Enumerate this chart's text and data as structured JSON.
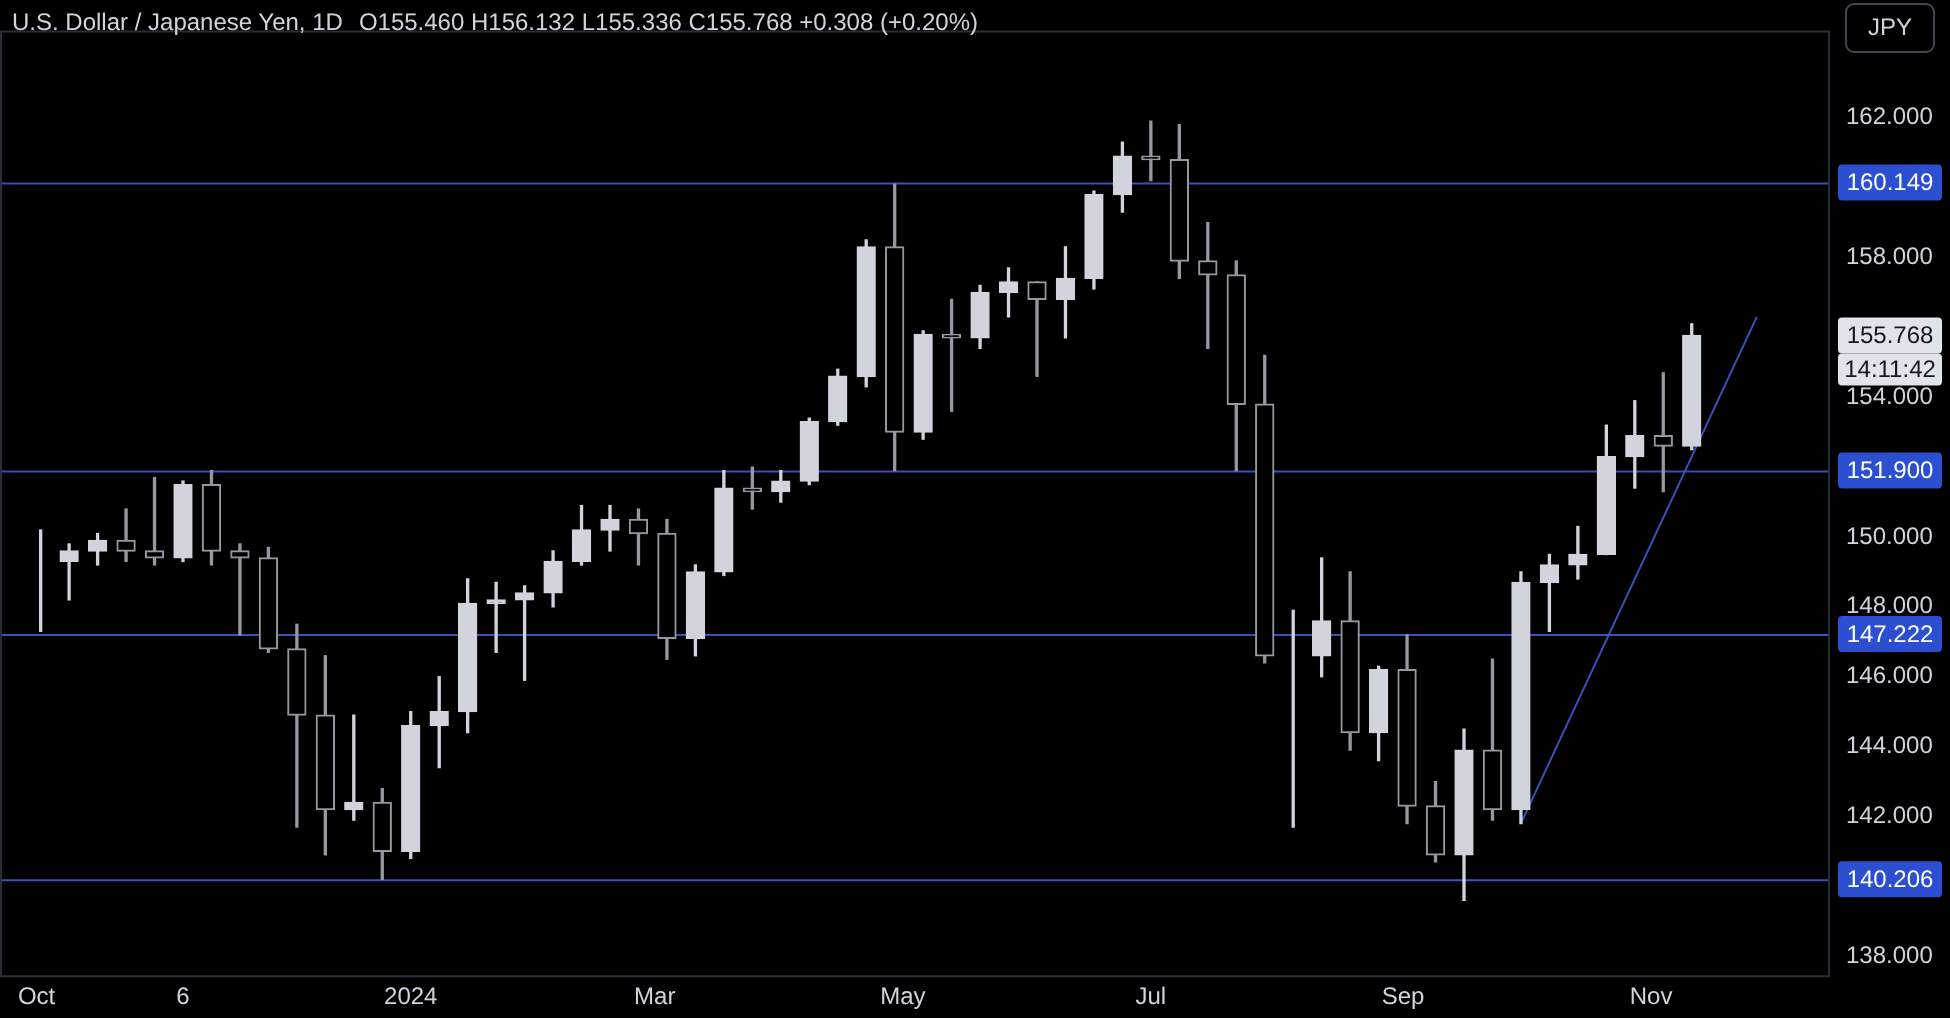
{
  "chart_data": {
    "type": "candlestick",
    "title": "U.S. Dollar / Japanese Yen, 1D",
    "subtitle": "O155.460 H156.132 L155.336 C155.768 +0.308 (+0.20%)",
    "colors": [
      "#d1d4dc",
      "#d1d4dc",
      "#d1d4dc",
      "#9598a1",
      "#9598a1",
      "#d1d4dc",
      "#9598a1",
      "#9598a1",
      "#9598a1",
      "#9598a1",
      "#9598a1",
      "#d1d4dc",
      "#9598a1",
      "#d1d4dc",
      "#d1d4dc",
      "#d1d4dc",
      "#d1d4dc",
      "#d1d4dc",
      "#d1d4dc",
      "#d1d4dc",
      "#d1d4dc",
      "#9598a1",
      "#9598a1",
      "#d1d4dc",
      "#d1d4dc",
      "#9598a1",
      "#d1d4dc",
      "#d1d4dc",
      "#d1d4dc",
      "#d1d4dc",
      "#9598a1",
      "#d1d4dc",
      "#9598a1",
      "#d1d4dc",
      "#d1d4dc",
      "#9598a1",
      "#d1d4dc",
      "#d1d4dc",
      "#d1d4dc",
      "#9598a1",
      "#9598a1",
      "#9598a1",
      "#9598a1",
      "#9598a1",
      "#d1d4dc",
      "#d1d4dc",
      "#9598a1",
      "#d1d4dc",
      "#9598a1",
      "#9598a1",
      "#d1d4dc",
      "#9598a1",
      "#d1d4dc",
      "#d1d4dc",
      "#d1d4dc",
      "#d1d4dc",
      "#d1d4dc",
      "#9598a1",
      "#d1d4dc"
    ],
    "x": [
      "2023-10-02",
      "2023-10-09",
      "2023-10-16",
      "2023-10-23",
      "2023-10-30",
      "2023-11-06",
      "2023-11-13",
      "2023-11-20",
      "2023-11-27",
      "2023-12-04",
      "2023-12-11",
      "2023-12-18",
      "2023-12-25",
      "2024-01-01",
      "2024-01-08",
      "2024-01-15",
      "2024-01-22",
      "2024-01-29",
      "2024-02-05",
      "2024-02-12",
      "2024-02-19",
      "2024-02-26",
      "2024-03-04",
      "2024-03-11",
      "2024-03-18",
      "2024-03-25",
      "2024-04-01",
      "2024-04-08",
      "2024-04-15",
      "2024-04-22",
      "2024-04-29",
      "2024-05-06",
      "2024-05-13",
      "2024-05-20",
      "2024-05-27",
      "2024-06-03",
      "2024-06-10",
      "2024-06-17",
      "2024-06-24",
      "2024-07-01",
      "2024-07-08",
      "2024-07-15",
      "2024-07-22",
      "2024-07-29",
      "2024-08-05",
      "2024-08-12",
      "2024-08-19",
      "2024-08-26",
      "2024-09-02",
      "2024-09-09",
      "2024-09-16",
      "2024-09-23",
      "2024-09-30",
      "2024-10-07",
      "2024-10-14",
      "2024-10-21",
      "2024-10-28",
      "2024-11-04",
      "2024-11-11"
    ],
    "ohlc": [
      [
        149.3,
        150.2,
        147.3,
        149.3
      ],
      [
        149.3,
        149.8,
        148.2,
        149.6
      ],
      [
        149.6,
        150.1,
        149.2,
        149.9
      ],
      [
        149.9,
        150.8,
        149.3,
        149.6
      ],
      [
        149.6,
        151.7,
        149.2,
        149.4
      ],
      [
        149.4,
        151.6,
        149.3,
        151.5
      ],
      [
        151.5,
        151.9,
        149.2,
        149.6
      ],
      [
        149.6,
        149.8,
        147.2,
        149.4
      ],
      [
        149.4,
        149.7,
        146.7,
        146.8
      ],
      [
        146.8,
        147.5,
        141.7,
        144.9
      ],
      [
        144.9,
        146.6,
        140.9,
        142.2
      ],
      [
        142.2,
        144.9,
        141.9,
        142.4
      ],
      [
        142.4,
        142.8,
        140.2,
        141
      ],
      [
        141,
        145,
        140.8,
        144.6
      ],
      [
        144.6,
        146,
        143.4,
        145
      ],
      [
        145,
        148.8,
        144.4,
        148.1
      ],
      [
        148.1,
        148.7,
        146.7,
        148.2
      ],
      [
        148.2,
        148.6,
        145.9,
        148.4
      ],
      [
        148.4,
        149.6,
        148,
        149.3
      ],
      [
        149.3,
        150.9,
        149.2,
        150.2
      ],
      [
        150.2,
        150.9,
        149.6,
        150.5
      ],
      [
        150.5,
        150.8,
        149.2,
        150.1
      ],
      [
        150.1,
        150.5,
        146.5,
        147.1
      ],
      [
        147.1,
        149.2,
        146.6,
        149
      ],
      [
        149,
        151.9,
        148.9,
        151.4
      ],
      [
        151.4,
        152,
        150.8,
        151.3
      ],
      [
        151.3,
        151.9,
        151,
        151.6
      ],
      [
        151.6,
        153.4,
        151.5,
        153.3
      ],
      [
        153.3,
        154.8,
        153.2,
        154.6
      ],
      [
        154.6,
        158.5,
        154.3,
        158.3
      ],
      [
        158.3,
        160.1,
        151.9,
        153
      ],
      [
        153,
        155.9,
        152.8,
        155.8
      ],
      [
        155.8,
        156.8,
        153.6,
        155.7
      ],
      [
        155.7,
        157.2,
        155.4,
        157
      ],
      [
        157,
        157.7,
        156.3,
        157.3
      ],
      [
        157.3,
        157.3,
        154.6,
        156.8
      ],
      [
        156.8,
        158.3,
        155.7,
        157.4
      ],
      [
        157.4,
        159.9,
        157.1,
        159.8
      ],
      [
        159.8,
        161.3,
        159.3,
        160.9
      ],
      [
        160.9,
        161.9,
        160.2,
        160.8
      ],
      [
        160.8,
        161.8,
        157.4,
        157.9
      ],
      [
        157.9,
        159,
        155.4,
        157.5
      ],
      [
        157.5,
        157.9,
        151.9,
        153.8
      ],
      [
        153.8,
        155.2,
        146.4,
        146.6
      ],
      [
        146.6,
        147.9,
        141.7,
        146.6
      ],
      [
        146.6,
        149.4,
        146,
        147.6
      ],
      [
        147.6,
        149,
        143.9,
        144.4
      ],
      [
        144.4,
        146.3,
        143.6,
        146.2
      ],
      [
        146.2,
        147.2,
        141.8,
        142.3
      ],
      [
        142.3,
        143,
        140.7,
        140.9
      ],
      [
        140.9,
        144.5,
        139.6,
        143.9
      ],
      [
        143.9,
        146.5,
        141.9,
        142.2
      ],
      [
        142.2,
        149,
        141.8,
        148.7
      ],
      [
        148.7,
        149.5,
        147.3,
        149.2
      ],
      [
        149.2,
        150.3,
        148.8,
        149.5
      ],
      [
        149.5,
        153.2,
        149.5,
        152.3
      ],
      [
        152.3,
        153.9,
        151.4,
        152.9
      ],
      [
        152.9,
        154.7,
        151.3,
        152.6
      ],
      [
        152.6,
        156.1,
        152.5,
        155.768
      ]
    ],
    "series": [
      {
        "type": "line",
        "color": "#3d4fb8",
        "x": [
          "2024-09-30",
          "2024-11-27"
        ],
        "values": [
          141.8,
          156.3
        ]
      }
    ],
    "ref_lines": [
      {
        "axis": "y",
        "value": 160.149,
        "label": "160.149",
        "color": "#3d4fb8"
      },
      {
        "axis": "y",
        "value": 151.9,
        "label": "151.900",
        "color": "#3d4fb8"
      },
      {
        "axis": "y",
        "value": 147.222,
        "label": "147.222",
        "color": "#3d4fb8"
      },
      {
        "axis": "y",
        "value": 140.206,
        "label": "140.206",
        "color": "#3d4fb8"
      }
    ],
    "annotations": [
      "155.768",
      "14:11:42",
      "JPY"
    ],
    "xlim": [
      "2023-09-22",
      "2024-12-15"
    ],
    "xticks": [
      {
        "value": "2023-10-01",
        "label": "Oct"
      },
      {
        "value": "2023-11-06",
        "label": "6"
      },
      {
        "value": "2024-01-01",
        "label": "2024"
      },
      {
        "value": "2024-03-01",
        "label": "Mar"
      },
      {
        "value": "2024-05-01",
        "label": "May"
      },
      {
        "value": "2024-07-01",
        "label": "Jul"
      },
      {
        "value": "2024-09-01",
        "label": "Sep"
      },
      {
        "value": "2024-11-01",
        "label": "Nov"
      }
    ],
    "ylim": [
      137.4,
      164.5
    ],
    "yticks": [
      {
        "value": 138,
        "label": "138.000"
      },
      {
        "value": 142,
        "label": "142.000"
      },
      {
        "value": 144,
        "label": "144.000"
      },
      {
        "value": 146,
        "label": "146.000"
      },
      {
        "value": 148,
        "label": "148.000"
      },
      {
        "value": 150,
        "label": "150.000"
      },
      {
        "value": 154,
        "label": "154.000"
      },
      {
        "value": 158,
        "label": "158.000"
      },
      {
        "value": 162,
        "label": "162.000"
      }
    ]
  }
}
